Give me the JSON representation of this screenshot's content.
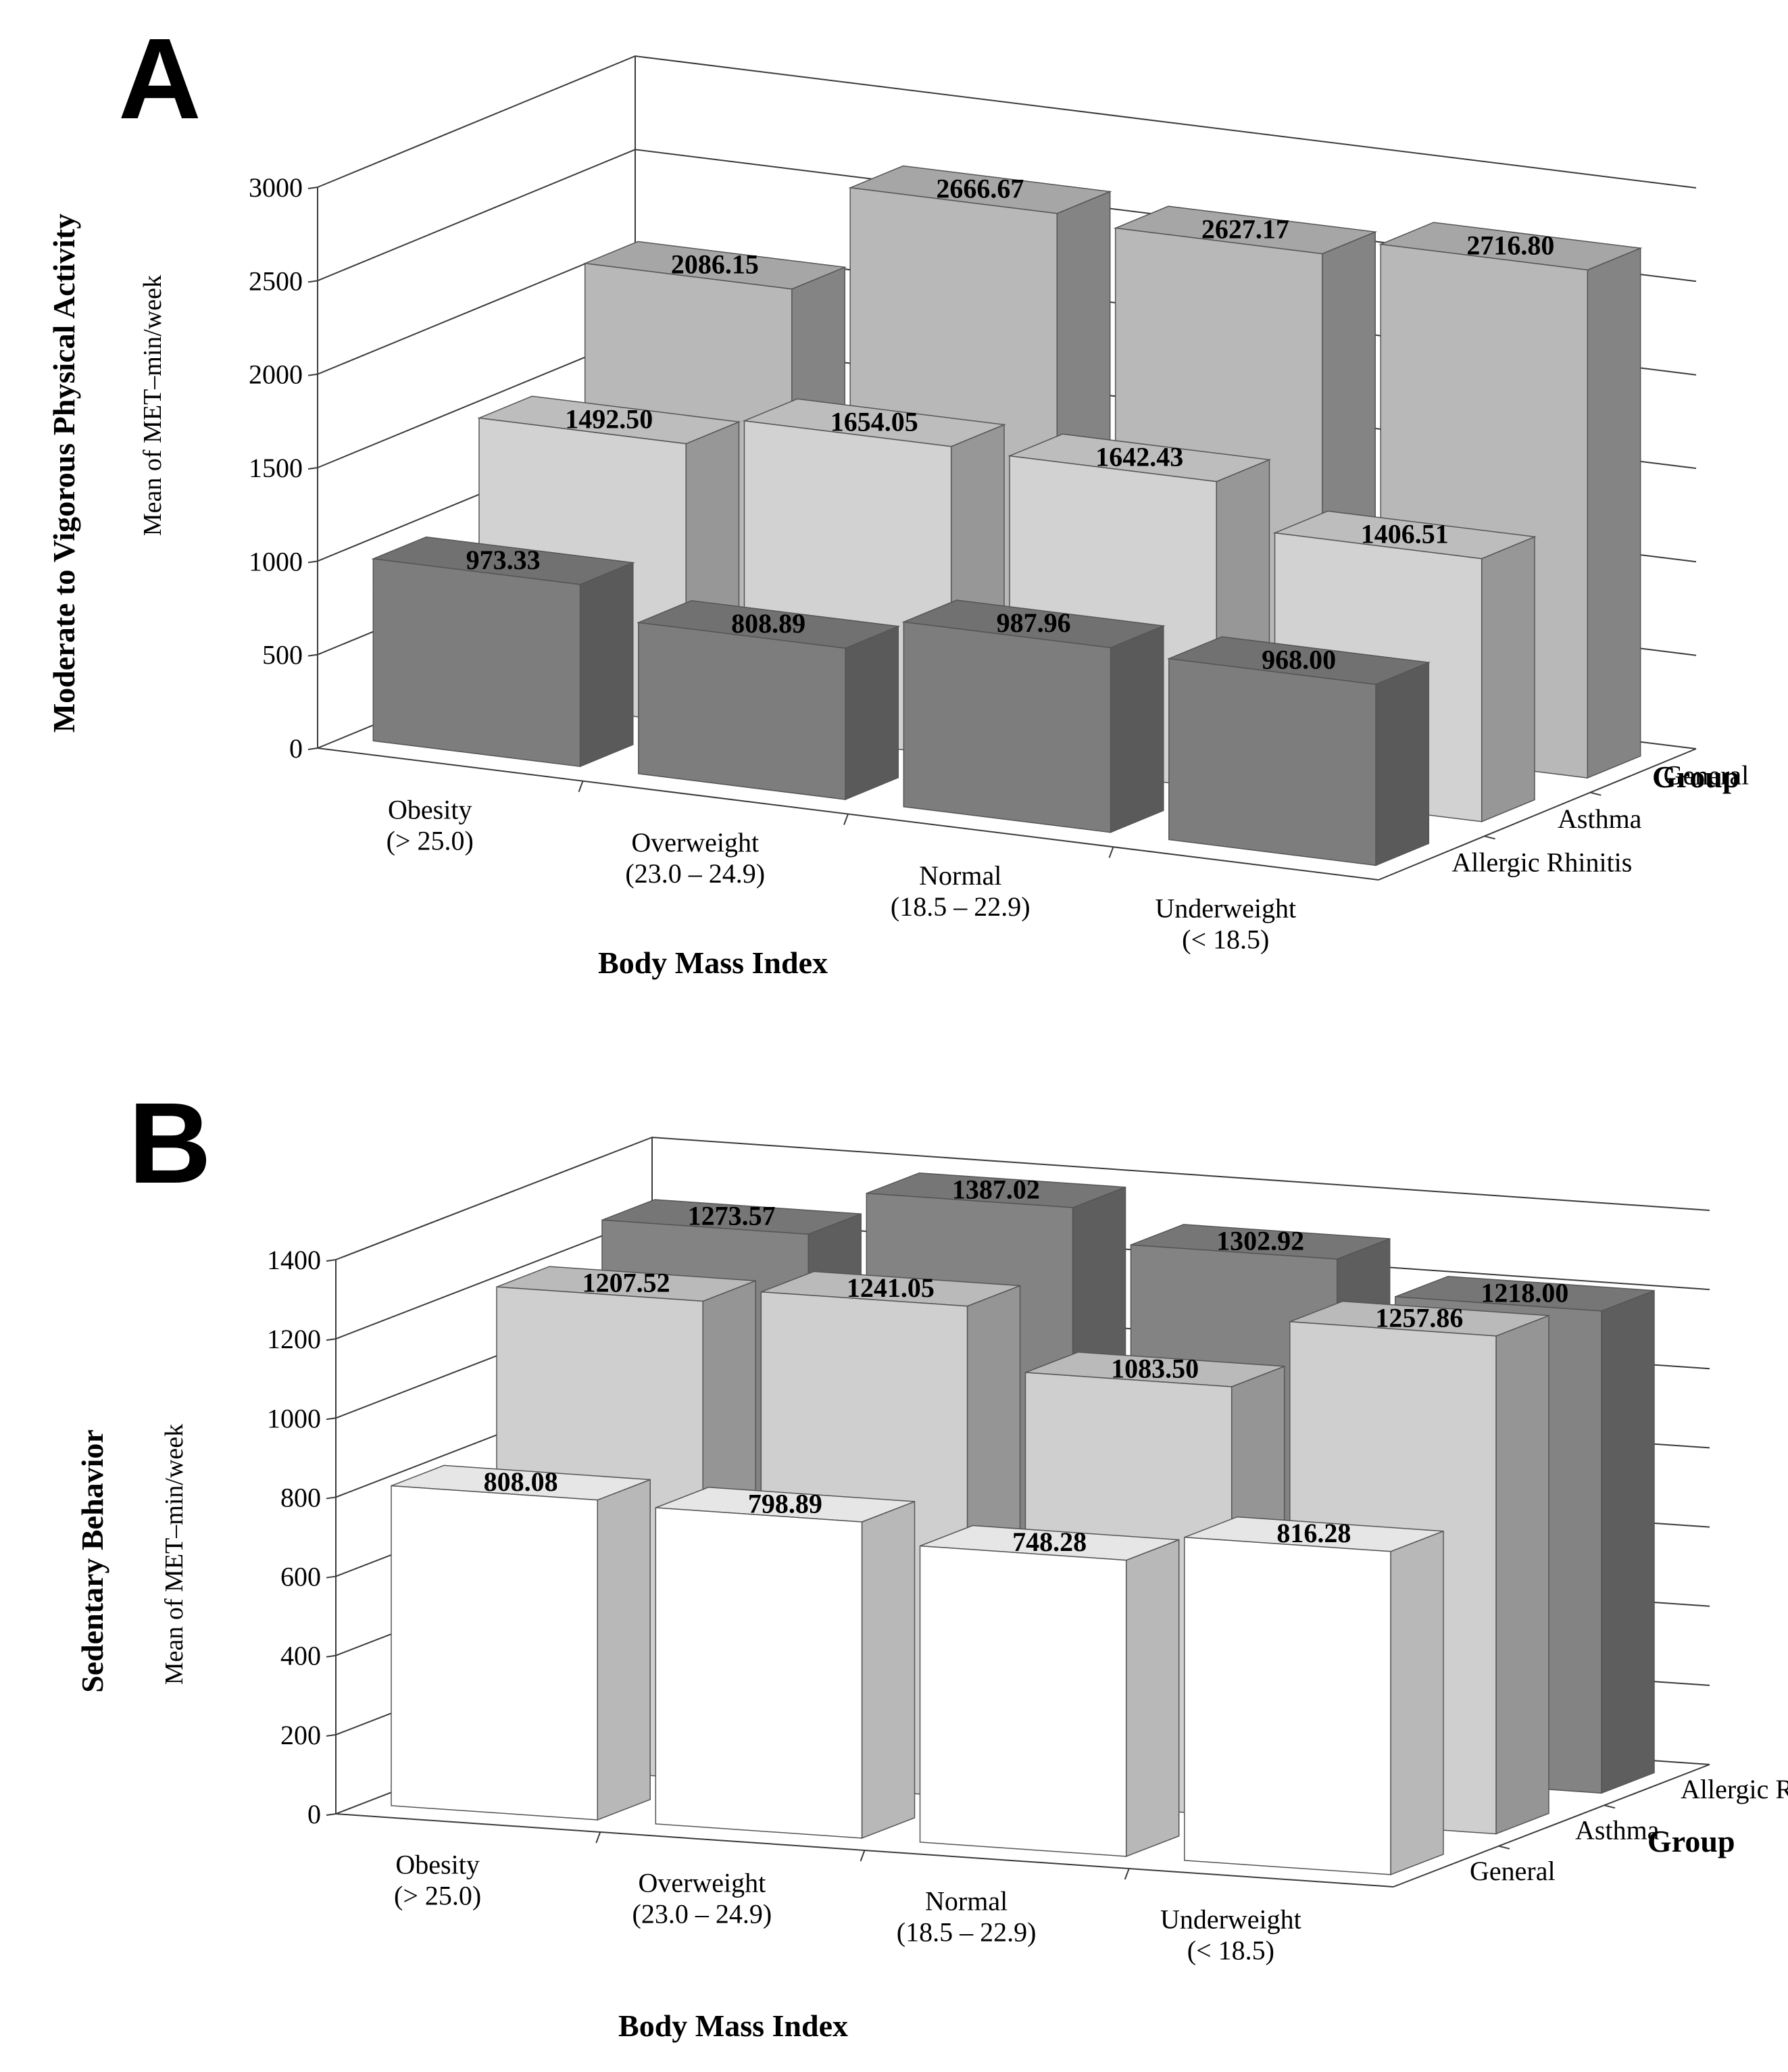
{
  "chart_data": [
    {
      "panel": "A",
      "type": "bar",
      "projection": "3d",
      "title": "",
      "ylabel": "Moderate to Vigorous Physical Activity",
      "ylabel_sub": "Mean of MET–min/week",
      "xlabel": "Body Mass Index",
      "zlabel": "Group",
      "ylim": [
        0,
        3000
      ],
      "yticks": [
        "3000",
        "2500",
        "2000",
        "1500",
        "1000",
        "500",
        "0"
      ],
      "categories": [
        {
          "line1": "Obesity",
          "line2": "(> 25.0)"
        },
        {
          "line1": "Overweight",
          "line2": "(23.0 – 24.9)"
        },
        {
          "line1": "Normal",
          "line2": "(18.5 – 22.9)"
        },
        {
          "line1": "Underweight",
          "line2": "(< 18.5)"
        }
      ],
      "series": [
        {
          "name": "Allergic Rhinitis",
          "values": [
            973.33,
            808.89,
            987.96,
            968.0
          ],
          "labels": [
            "973.33",
            "808.89",
            "987.96",
            "968.00"
          ],
          "color": "#7d7d7d"
        },
        {
          "name": "Asthma",
          "values": [
            1492.5,
            1654.05,
            1642.43,
            1406.51
          ],
          "labels": [
            "1492.50",
            "1654.05",
            "1642.43",
            "1406.51"
          ],
          "color": "#d2d2d2"
        },
        {
          "name": "General",
          "values": [
            2086.15,
            2666.67,
            2627.17,
            2716.8
          ],
          "labels": [
            "2086.15",
            "2666.67",
            "2627.17",
            "2716.80"
          ],
          "color": "#b8b8b8"
        }
      ]
    },
    {
      "panel": "B",
      "type": "bar",
      "projection": "3d",
      "title": "",
      "ylabel": "Sedentary Behavior",
      "ylabel_sub": "Mean of MET–min/week",
      "xlabel": "Body Mass Index",
      "zlabel": "Group",
      "ylim": [
        0,
        1400
      ],
      "yticks": [
        "1400",
        "1200",
        "1000",
        "800",
        "600",
        "400",
        "200",
        "0"
      ],
      "categories": [
        {
          "line1": "Obesity",
          "line2": "(> 25.0)"
        },
        {
          "line1": "Overweight",
          "line2": "(23.0 – 24.9)"
        },
        {
          "line1": "Normal",
          "line2": "(18.5 – 22.9)"
        },
        {
          "line1": "Underweight",
          "line2": "(< 18.5)"
        }
      ],
      "series": [
        {
          "name": "General",
          "values": [
            808.08,
            798.89,
            748.28,
            816.28
          ],
          "labels": [
            "808.08",
            "798.89",
            "748.28",
            "816.28"
          ],
          "color": "#ffffff"
        },
        {
          "name": "Asthma",
          "values": [
            1207.52,
            1241.05,
            1083.5,
            1257.86
          ],
          "labels": [
            "1207.52",
            "1241.05",
            "1083.50",
            "1257.86"
          ],
          "color": "#cfcfcf"
        },
        {
          "name": "Allergic Rhinitis",
          "values": [
            1273.57,
            1387.02,
            1302.92,
            1218.0
          ],
          "labels": [
            "1273.57",
            "1387.02",
            "1302.92",
            "1218.00"
          ],
          "color": "#838383"
        }
      ]
    }
  ]
}
